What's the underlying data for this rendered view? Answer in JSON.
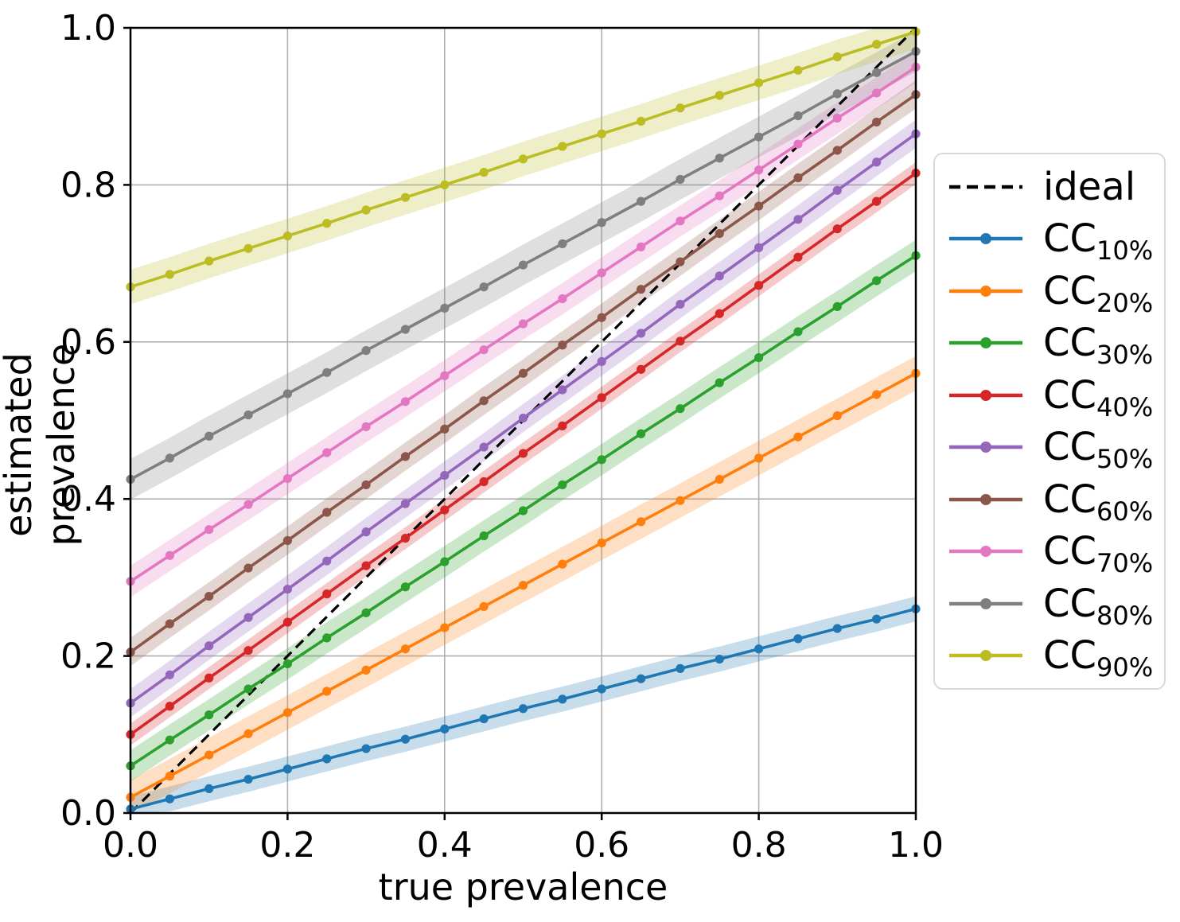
{
  "figure": {
    "xlabel": "true prevalence",
    "ylabel": "estimated prevalence"
  },
  "legend": {
    "entries": [
      {
        "label": "ideal",
        "sub": "",
        "style": "dashed",
        "color": "#000000"
      },
      {
        "label": "CC",
        "sub": "10%",
        "style": "line-marker",
        "color": "#1f77b4"
      },
      {
        "label": "CC",
        "sub": "20%",
        "style": "line-marker",
        "color": "#ff7f0e"
      },
      {
        "label": "CC",
        "sub": "30%",
        "style": "line-marker",
        "color": "#2ca02c"
      },
      {
        "label": "CC",
        "sub": "40%",
        "style": "line-marker",
        "color": "#d62728"
      },
      {
        "label": "CC",
        "sub": "50%",
        "style": "line-marker",
        "color": "#9467bd"
      },
      {
        "label": "CC",
        "sub": "60%",
        "style": "line-marker",
        "color": "#8c564b"
      },
      {
        "label": "CC",
        "sub": "70%",
        "style": "line-marker",
        "color": "#e377c2"
      },
      {
        "label": "CC",
        "sub": "80%",
        "style": "line-marker",
        "color": "#7f7f7f"
      },
      {
        "label": "CC",
        "sub": "90%",
        "style": "line-marker",
        "color": "#bcbd22"
      }
    ]
  },
  "chart_data": {
    "type": "line",
    "title": "",
    "xlabel": "true prevalence",
    "ylabel": "estimated prevalence",
    "xlim": [
      0.0,
      1.0
    ],
    "ylim": [
      0.0,
      1.0
    ],
    "grid": true,
    "grid_color": "#b0b0b0",
    "legend_position": "outside-right",
    "x_tick_labels": [
      "0.0",
      "0.2",
      "0.4",
      "0.6",
      "0.8",
      "1.0"
    ],
    "y_tick_labels": [
      "0.0",
      "0.2",
      "0.4",
      "0.6",
      "0.8",
      "1.0"
    ],
    "tick_values": [
      0.0,
      0.2,
      0.4,
      0.6,
      0.8,
      1.0
    ],
    "x": [
      0.0,
      0.05,
      0.1,
      0.15,
      0.2,
      0.25,
      0.3,
      0.35,
      0.4,
      0.45,
      0.5,
      0.55,
      0.6,
      0.65,
      0.7,
      0.75,
      0.8,
      0.85,
      0.9,
      0.95,
      1.0
    ],
    "ideal": {
      "name": "ideal",
      "style": "dashed",
      "color": "#000000",
      "x": [
        0.0,
        1.0
      ],
      "y": [
        0.0,
        1.0
      ]
    },
    "series": [
      {
        "name": "CC_10%",
        "color": "#1f77b4",
        "band_halfwidth": 0.016,
        "values": [
          0.005,
          0.018,
          0.031,
          0.043,
          0.056,
          0.069,
          0.082,
          0.094,
          0.107,
          0.12,
          0.133,
          0.145,
          0.158,
          0.171,
          0.184,
          0.196,
          0.209,
          0.222,
          0.235,
          0.247,
          0.26
        ]
      },
      {
        "name": "CC_20%",
        "color": "#ff7f0e",
        "band_halfwidth": 0.022,
        "values": [
          0.02,
          0.047,
          0.074,
          0.101,
          0.128,
          0.155,
          0.182,
          0.209,
          0.236,
          0.263,
          0.29,
          0.317,
          0.344,
          0.371,
          0.398,
          0.425,
          0.452,
          0.479,
          0.506,
          0.533,
          0.56
        ]
      },
      {
        "name": "CC_30%",
        "color": "#2ca02c",
        "band_halfwidth": 0.02,
        "values": [
          0.06,
          0.093,
          0.125,
          0.158,
          0.19,
          0.223,
          0.255,
          0.288,
          0.32,
          0.353,
          0.385,
          0.418,
          0.45,
          0.483,
          0.515,
          0.548,
          0.58,
          0.613,
          0.645,
          0.678,
          0.71
        ]
      },
      {
        "name": "CC_40%",
        "color": "#d62728",
        "band_halfwidth": 0.014,
        "values": [
          0.1,
          0.136,
          0.172,
          0.207,
          0.243,
          0.279,
          0.315,
          0.35,
          0.386,
          0.422,
          0.458,
          0.493,
          0.529,
          0.565,
          0.601,
          0.636,
          0.672,
          0.708,
          0.744,
          0.779,
          0.815
        ]
      },
      {
        "name": "CC_50%",
        "color": "#9467bd",
        "band_halfwidth": 0.018,
        "values": [
          0.14,
          0.176,
          0.213,
          0.249,
          0.285,
          0.321,
          0.358,
          0.394,
          0.43,
          0.466,
          0.503,
          0.539,
          0.575,
          0.611,
          0.648,
          0.684,
          0.72,
          0.756,
          0.793,
          0.829,
          0.865
        ]
      },
      {
        "name": "CC_60%",
        "color": "#8c564b",
        "band_halfwidth": 0.018,
        "values": [
          0.205,
          0.241,
          0.276,
          0.312,
          0.347,
          0.383,
          0.418,
          0.454,
          0.489,
          0.525,
          0.56,
          0.596,
          0.631,
          0.667,
          0.702,
          0.738,
          0.773,
          0.809,
          0.844,
          0.88,
          0.915
        ]
      },
      {
        "name": "CC_70%",
        "color": "#e377c2",
        "band_halfwidth": 0.02,
        "values": [
          0.295,
          0.328,
          0.361,
          0.393,
          0.426,
          0.459,
          0.492,
          0.524,
          0.557,
          0.59,
          0.623,
          0.655,
          0.688,
          0.721,
          0.754,
          0.786,
          0.819,
          0.852,
          0.885,
          0.917,
          0.95
        ]
      },
      {
        "name": "CC_80%",
        "color": "#7f7f7f",
        "band_halfwidth": 0.026,
        "values": [
          0.425,
          0.452,
          0.48,
          0.507,
          0.534,
          0.561,
          0.589,
          0.616,
          0.643,
          0.67,
          0.698,
          0.725,
          0.752,
          0.779,
          0.807,
          0.834,
          0.861,
          0.888,
          0.916,
          0.943,
          0.97
        ]
      },
      {
        "name": "CC_90%",
        "color": "#bcbd22",
        "band_halfwidth": 0.022,
        "values": [
          0.67,
          0.686,
          0.703,
          0.719,
          0.735,
          0.751,
          0.768,
          0.784,
          0.8,
          0.816,
          0.833,
          0.849,
          0.865,
          0.881,
          0.898,
          0.914,
          0.93,
          0.946,
          0.963,
          0.979,
          0.995
        ]
      }
    ]
  }
}
